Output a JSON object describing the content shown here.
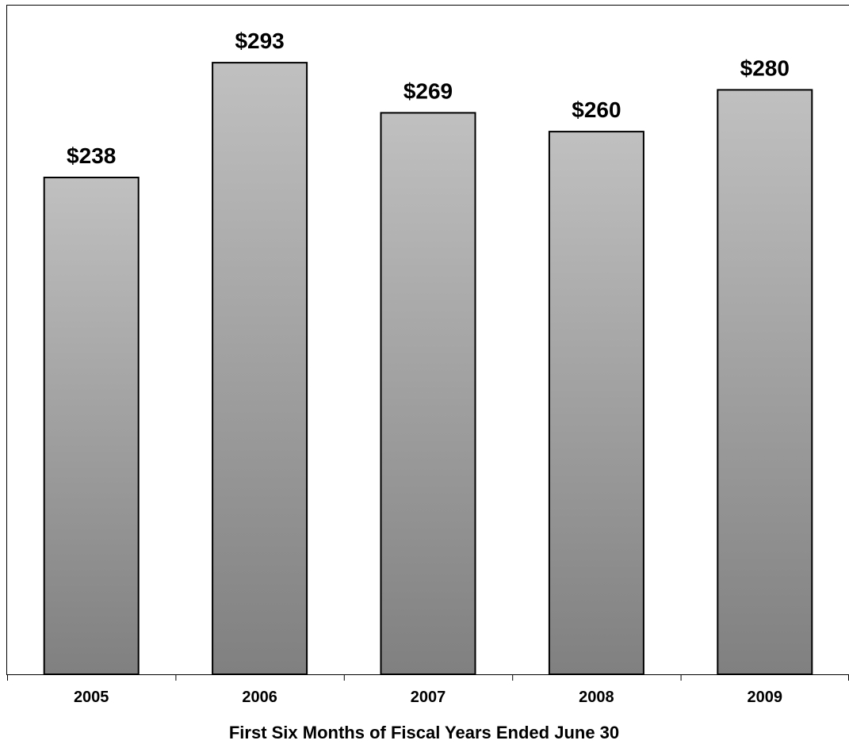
{
  "chart_data": {
    "type": "bar",
    "categories": [
      "2005",
      "2006",
      "2007",
      "2008",
      "2009"
    ],
    "values": [
      238,
      293,
      269,
      260,
      280
    ],
    "value_labels": [
      "$238",
      "$293",
      "$269",
      "$260",
      "$280"
    ],
    "title": "",
    "xlabel": "First Six Months of Fiscal Years Ended June 30",
    "ylabel": "",
    "ylim": [
      0,
      320
    ],
    "grid": false,
    "legend": "none",
    "colors": {
      "bar_top": "#c0c0c0",
      "bar_bottom": "#808080",
      "bar_border": "#000000",
      "axis": "#000000"
    }
  }
}
